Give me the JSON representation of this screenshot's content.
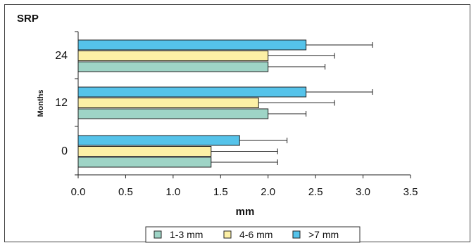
{
  "chart_data": {
    "type": "bar",
    "orientation": "horizontal",
    "title": "SRP",
    "xlabel": "mm",
    "ylabel": "Months",
    "xlim": [
      0.0,
      3.5
    ],
    "xticks": [
      "0.0",
      "0.5",
      "1.0",
      "1.5",
      "2.0",
      "2.5",
      "3.0",
      "3.5"
    ],
    "xtick_values": [
      0,
      0.5,
      1.0,
      1.5,
      2.0,
      2.5,
      3.0,
      3.5
    ],
    "categories": [
      "0",
      "12",
      "24"
    ],
    "grid": false,
    "legend_position": "bottom",
    "series": [
      {
        "name": "1-3 mm",
        "color": "#9ED4C6",
        "values": [
          1.4,
          2.0,
          2.0
        ],
        "error": [
          0.7,
          0.4,
          0.6
        ]
      },
      {
        "name": "4-6 mm",
        "color": "#FDF0A6",
        "values": [
          1.4,
          1.9,
          2.0
        ],
        "error": [
          0.7,
          0.8,
          0.7
        ]
      },
      {
        "name": ">7 mm",
        "color": "#55C3EA",
        "values": [
          1.7,
          2.4,
          2.4
        ],
        "error": [
          0.5,
          0.7,
          0.7
        ]
      }
    ]
  }
}
